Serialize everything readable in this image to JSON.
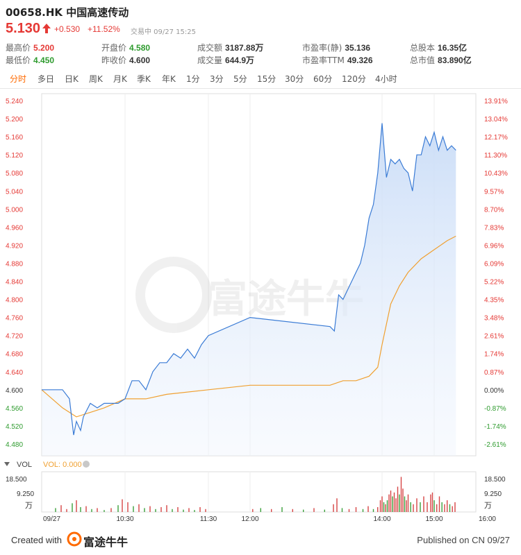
{
  "header": {
    "symbol": "00658.HK",
    "name": "中国高速传动",
    "price": "5.130",
    "change": "+0.530",
    "change_pct": "+11.52%",
    "status": "交易中 09/27 15:25"
  },
  "stats": {
    "high_label": "最高价",
    "high": "5.200",
    "low_label": "最低价",
    "low": "4.450",
    "open_label": "开盘价",
    "open": "4.580",
    "prev_close_label": "昨收价",
    "prev_close": "4.600",
    "turnover_label": "成交额",
    "turnover": "3187.88万",
    "volume_label": "成交量",
    "volume": "644.9万",
    "pe_static_label": "市盈率(静)",
    "pe_static": "35.136",
    "pe_ttm_label": "市盈率TTM",
    "pe_ttm": "49.326",
    "shares_label": "总股本",
    "shares": "16.35亿",
    "mktcap_label": "总市值",
    "mktcap": "83.890亿"
  },
  "tabs": [
    "分时",
    "多日",
    "日K",
    "周K",
    "月K",
    "季K",
    "年K",
    "1分",
    "3分",
    "5分",
    "15分",
    "30分",
    "60分",
    "120分",
    "4小时"
  ],
  "active_tab": "分时",
  "volume_panel": {
    "label": "VOL",
    "vol_label": "VOL: 0.000",
    "left_ticks": [
      "18.500",
      "9.250",
      "万"
    ],
    "right_ticks": [
      "18.500",
      "9.250",
      "万"
    ]
  },
  "watermark": "富途牛牛",
  "footer": {
    "created_with": "Created with",
    "brand": "富途牛牛",
    "published": "Published on CN 09/27"
  },
  "colors": {
    "up": "#e53935",
    "down": "#2e9b2e",
    "price_line": "#3a7bd5",
    "avg_line": "#f0a030",
    "active_tab": "#ff6a00"
  },
  "chart_data": {
    "type": "line",
    "prev_close": 4.6,
    "ylim": [
      4.48,
      5.24
    ],
    "y_ticks": [
      "5.240",
      "5.200",
      "5.160",
      "5.120",
      "5.080",
      "5.040",
      "5.000",
      "4.960",
      "4.920",
      "4.880",
      "4.840",
      "4.800",
      "4.760",
      "4.720",
      "4.680",
      "4.640",
      "4.600",
      "4.560",
      "4.520",
      "4.480"
    ],
    "y_ticks_pct": [
      "13.91%",
      "13.04%",
      "12.17%",
      "11.30%",
      "10.43%",
      "9.57%",
      "8.70%",
      "7.83%",
      "6.96%",
      "6.09%",
      "5.22%",
      "4.35%",
      "3.48%",
      "2.61%",
      "1.74%",
      "0.87%",
      "0.00%",
      "-0.87%",
      "-1.74%",
      "-2.61%"
    ],
    "x_ticks": [
      "09/27",
      "10:30",
      "11:30",
      "12:00",
      "14:00",
      "15:00",
      "16:00"
    ],
    "series": [
      {
        "x": [
          "09:30",
          "09:40",
          "09:45",
          "09:50",
          "09:53",
          "09:55",
          "09:58",
          "10:00",
          "10:05",
          "10:10",
          "10:15",
          "10:20",
          "10:25",
          "10:30",
          "10:35",
          "10:40",
          "10:45",
          "10:50",
          "10:55",
          "11:00",
          "11:05",
          "11:10",
          "11:15",
          "11:20",
          "11:25",
          "11:30",
          "12:00",
          "13:00",
          "13:05",
          "13:10",
          "13:15",
          "13:20",
          "13:25",
          "13:30",
          "13:35",
          "13:40",
          "13:45",
          "13:50",
          "13:55",
          "14:00",
          "14:05",
          "14:10",
          "14:15",
          "14:20",
          "14:25",
          "14:30",
          "14:35",
          "14:40",
          "14:45",
          "14:50",
          "14:55",
          "15:00",
          "15:05",
          "15:10",
          "15:15",
          "15:20",
          "15:25"
        ],
        "values": [
          4.6,
          4.6,
          4.6,
          4.58,
          4.5,
          4.53,
          4.51,
          4.54,
          4.57,
          4.56,
          4.57,
          4.57,
          4.57,
          4.58,
          4.62,
          4.62,
          4.6,
          4.64,
          4.66,
          4.66,
          4.68,
          4.67,
          4.69,
          4.67,
          4.7,
          4.72,
          4.76,
          4.74,
          4.73,
          4.81,
          4.8,
          4.82,
          4.84,
          4.86,
          4.88,
          4.92,
          4.98,
          5.01,
          5.08,
          5.19,
          5.07,
          5.11,
          5.1,
          5.11,
          5.09,
          5.08,
          5.04,
          5.12,
          5.12,
          5.16,
          5.14,
          5.17,
          5.13,
          5.16,
          5.13,
          5.14,
          5.13
        ]
      },
      {
        "x": [
          "09:30",
          "09:45",
          "09:55",
          "10:05",
          "10:15",
          "10:30",
          "10:45",
          "11:00",
          "11:30",
          "12:00",
          "13:00",
          "13:15",
          "13:30",
          "13:45",
          "13:55",
          "14:00",
          "14:10",
          "14:20",
          "14:30",
          "14:45",
          "15:00",
          "15:15",
          "15:25"
        ],
        "values": [
          4.6,
          4.56,
          4.54,
          4.55,
          4.56,
          4.58,
          4.58,
          4.59,
          4.6,
          4.61,
          4.61,
          4.62,
          4.62,
          4.63,
          4.65,
          4.7,
          4.79,
          4.83,
          4.86,
          4.89,
          4.91,
          4.93,
          4.94
        ]
      }
    ],
    "volume_ylim": [
      0,
      18.5
    ],
    "volume": [
      {
        "t": "09:40",
        "v": 2.0,
        "c": "green"
      },
      {
        "t": "09:44",
        "v": 3.5,
        "c": "red"
      },
      {
        "t": "09:48",
        "v": 1.5,
        "c": "red"
      },
      {
        "t": "09:52",
        "v": 4.5,
        "c": "green"
      },
      {
        "t": "09:55",
        "v": 6.0,
        "c": "red"
      },
      {
        "t": "09:58",
        "v": 2.5,
        "c": "green"
      },
      {
        "t": "10:02",
        "v": 3.0,
        "c": "red"
      },
      {
        "t": "10:06",
        "v": 1.5,
        "c": "green"
      },
      {
        "t": "10:10",
        "v": 2.0,
        "c": "red"
      },
      {
        "t": "10:15",
        "v": 1.0,
        "c": "green"
      },
      {
        "t": "10:20",
        "v": 2.0,
        "c": "red"
      },
      {
        "t": "10:25",
        "v": 3.5,
        "c": "green"
      },
      {
        "t": "10:28",
        "v": 6.5,
        "c": "red"
      },
      {
        "t": "10:32",
        "v": 5.0,
        "c": "red"
      },
      {
        "t": "10:36",
        "v": 3.0,
        "c": "green"
      },
      {
        "t": "10:40",
        "v": 4.0,
        "c": "red"
      },
      {
        "t": "10:44",
        "v": 2.0,
        "c": "green"
      },
      {
        "t": "10:48",
        "v": 3.0,
        "c": "red"
      },
      {
        "t": "10:52",
        "v": 1.5,
        "c": "green"
      },
      {
        "t": "10:56",
        "v": 2.5,
        "c": "red"
      },
      {
        "t": "11:00",
        "v": 3.5,
        "c": "red"
      },
      {
        "t": "11:04",
        "v": 1.5,
        "c": "green"
      },
      {
        "t": "11:08",
        "v": 2.5,
        "c": "red"
      },
      {
        "t": "11:12",
        "v": 1.2,
        "c": "green"
      },
      {
        "t": "11:16",
        "v": 2.0,
        "c": "red"
      },
      {
        "t": "11:20",
        "v": 1.0,
        "c": "green"
      },
      {
        "t": "11:24",
        "v": 2.5,
        "c": "red"
      },
      {
        "t": "11:28",
        "v": 1.5,
        "c": "red"
      },
      {
        "t": "12:02",
        "v": 1.5,
        "c": "red"
      },
      {
        "t": "12:08",
        "v": 2.0,
        "c": "green"
      },
      {
        "t": "12:16",
        "v": 1.5,
        "c": "red"
      },
      {
        "t": "12:24",
        "v": 2.5,
        "c": "green"
      },
      {
        "t": "12:32",
        "v": 1.5,
        "c": "red"
      },
      {
        "t": "12:40",
        "v": 1.2,
        "c": "green"
      },
      {
        "t": "12:48",
        "v": 2.0,
        "c": "red"
      },
      {
        "t": "12:56",
        "v": 1.2,
        "c": "green"
      },
      {
        "t": "13:04",
        "v": 4.0,
        "c": "red"
      },
      {
        "t": "13:08",
        "v": 7.0,
        "c": "red"
      },
      {
        "t": "13:14",
        "v": 2.0,
        "c": "green"
      },
      {
        "t": "13:22",
        "v": 1.5,
        "c": "red"
      },
      {
        "t": "13:30",
        "v": 2.5,
        "c": "red"
      },
      {
        "t": "13:38",
        "v": 1.5,
        "c": "green"
      },
      {
        "t": "13:44",
        "v": 3.0,
        "c": "red"
      },
      {
        "t": "13:50",
        "v": 1.5,
        "c": "green"
      },
      {
        "t": "13:55",
        "v": 2.5,
        "c": "red"
      },
      {
        "t": "13:58",
        "v": 6.0,
        "c": "red"
      },
      {
        "t": "14:00",
        "v": 8.0,
        "c": "red"
      },
      {
        "t": "14:02",
        "v": 5.0,
        "c": "green"
      },
      {
        "t": "14:04",
        "v": 4.0,
        "c": "red"
      },
      {
        "t": "14:06",
        "v": 6.0,
        "c": "green"
      },
      {
        "t": "14:08",
        "v": 9.0,
        "c": "red"
      },
      {
        "t": "14:10",
        "v": 11.0,
        "c": "red"
      },
      {
        "t": "14:12",
        "v": 8.0,
        "c": "green"
      },
      {
        "t": "14:14",
        "v": 10.0,
        "c": "red"
      },
      {
        "t": "14:16",
        "v": 7.0,
        "c": "red"
      },
      {
        "t": "14:18",
        "v": 13.0,
        "c": "red"
      },
      {
        "t": "14:20",
        "v": 9.0,
        "c": "green"
      },
      {
        "t": "14:22",
        "v": 18.0,
        "c": "red"
      },
      {
        "t": "14:24",
        "v": 12.0,
        "c": "red"
      },
      {
        "t": "14:26",
        "v": 8.0,
        "c": "green"
      },
      {
        "t": "14:28",
        "v": 6.0,
        "c": "red"
      },
      {
        "t": "14:30",
        "v": 9.0,
        "c": "red"
      },
      {
        "t": "14:33",
        "v": 5.0,
        "c": "green"
      },
      {
        "t": "14:36",
        "v": 4.0,
        "c": "red"
      },
      {
        "t": "14:40",
        "v": 7.0,
        "c": "red"
      },
      {
        "t": "14:44",
        "v": 5.0,
        "c": "green"
      },
      {
        "t": "14:48",
        "v": 8.0,
        "c": "red"
      },
      {
        "t": "14:52",
        "v": 5.0,
        "c": "red"
      },
      {
        "t": "14:56",
        "v": 9.0,
        "c": "red"
      },
      {
        "t": "14:58",
        "v": 10.0,
        "c": "red"
      },
      {
        "t": "15:00",
        "v": 6.0,
        "c": "green"
      },
      {
        "t": "15:03",
        "v": 4.0,
        "c": "red"
      },
      {
        "t": "15:06",
        "v": 8.0,
        "c": "red"
      },
      {
        "t": "15:09",
        "v": 5.0,
        "c": "green"
      },
      {
        "t": "15:12",
        "v": 4.0,
        "c": "red"
      },
      {
        "t": "15:15",
        "v": 6.0,
        "c": "red"
      },
      {
        "t": "15:18",
        "v": 4.0,
        "c": "green"
      },
      {
        "t": "15:21",
        "v": 3.0,
        "c": "red"
      },
      {
        "t": "15:24",
        "v": 5.0,
        "c": "red"
      }
    ]
  }
}
